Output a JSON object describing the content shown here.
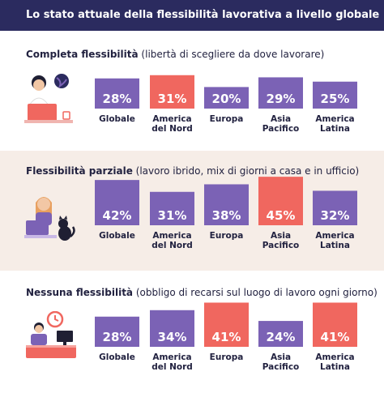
{
  "header": {
    "title": "Lo stato attuale della flessibilità lavorativa a livello globale"
  },
  "colors": {
    "purple": "#7b62b5",
    "highlight": "#f0675f",
    "header_bg": "#2b2b5f",
    "shaded_bg": "#f6ede7"
  },
  "sections": [
    {
      "title_bold": "Completa flessibilità",
      "title_rest": " (libertà di scegliere da dove lavorare)",
      "icon": "remote-worker-globe-icon"
    },
    {
      "title_bold": "Flessibilità parziale",
      "title_rest": " (lavoro ibrido, mix di giorni a casa e in ufficio)",
      "icon": "hybrid-worker-cat-icon"
    },
    {
      "title_bold": "Nessuna flessibilità",
      "title_rest": " (obbligo di recarsi sul luogo di lavoro ogni giorno)",
      "icon": "office-worker-clock-icon"
    }
  ],
  "chart_data": [
    {
      "type": "bar",
      "categories": [
        "Globale",
        "America del Nord",
        "Europa",
        "Asia Pacifico",
        "America Latina"
      ],
      "category_lines": [
        [
          "Globale"
        ],
        [
          "America",
          "del Nord"
        ],
        [
          "Europa"
        ],
        [
          "Asia",
          "Pacifico"
        ],
        [
          "America",
          "Latina"
        ]
      ],
      "values": [
        28,
        31,
        20,
        29,
        25
      ],
      "labels": [
        "28%",
        "31%",
        "20%",
        "29%",
        "25%"
      ],
      "highlight_index": 1,
      "ylim": [
        0,
        50
      ]
    },
    {
      "type": "bar",
      "categories": [
        "Globale",
        "America del Nord",
        "Europa",
        "Asia Pacifico",
        "America Latina"
      ],
      "category_lines": [
        [
          "Globale"
        ],
        [
          "America",
          "del Nord"
        ],
        [
          "Europa"
        ],
        [
          "Asia",
          "Pacifico"
        ],
        [
          "America",
          "Latina"
        ]
      ],
      "values": [
        42,
        31,
        38,
        45,
        32
      ],
      "labels": [
        "42%",
        "31%",
        "38%",
        "45%",
        "32%"
      ],
      "highlight_index": 3,
      "ylim": [
        0,
        50
      ]
    },
    {
      "type": "bar",
      "categories": [
        "Globale",
        "America del Nord",
        "Europa",
        "Asia Pacifico",
        "America Latina"
      ],
      "category_lines": [
        [
          "Globale"
        ],
        [
          "America",
          "del Nord"
        ],
        [
          "Europa"
        ],
        [
          "Asia",
          "Pacifico"
        ],
        [
          "America",
          "Latina"
        ]
      ],
      "values": [
        28,
        34,
        41,
        24,
        41
      ],
      "labels": [
        "28%",
        "34%",
        "41%",
        "24%",
        "41%"
      ],
      "highlight_indices": [
        2,
        4
      ],
      "ylim": [
        0,
        50
      ]
    }
  ]
}
